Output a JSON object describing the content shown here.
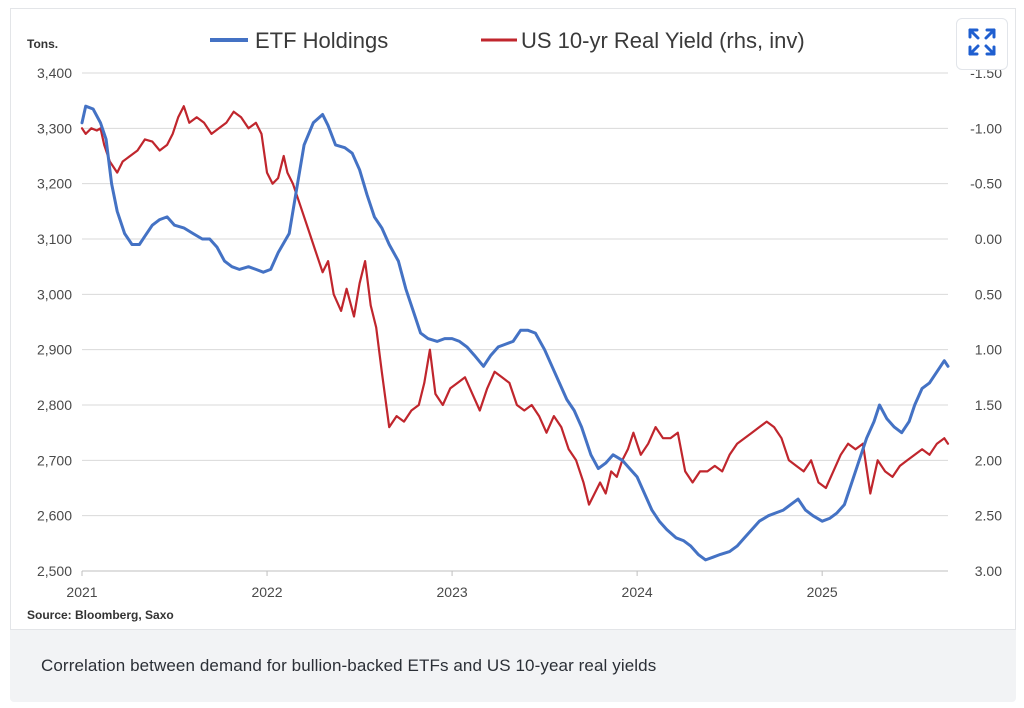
{
  "caption": "Correlation between demand for bullion-backed ETFs and US 10-year real yields",
  "chart_data": {
    "type": "line",
    "units_label": "Tons.",
    "source": "Source: Bloomberg, Saxo",
    "x_ticks": [
      "2021",
      "2022",
      "2023",
      "2024",
      "2025"
    ],
    "x_range": [
      2021.0,
      2025.68
    ],
    "left_axis": {
      "ticks": [
        "3,400",
        "3,300",
        "3,200",
        "3,100",
        "3,000",
        "2,900",
        "2,800",
        "2,700",
        "2,600",
        "2,500"
      ],
      "range": [
        2500,
        3400
      ]
    },
    "right_axis": {
      "inverted": true,
      "ticks": [
        "-1.50",
        "-1.00",
        "-0.50",
        "0.00",
        "0.50",
        "1.00",
        "1.50",
        "2.00",
        "2.50",
        "3.00"
      ],
      "range": [
        -1.5,
        3.0
      ]
    },
    "grid": true,
    "legend_position": "top",
    "series": [
      {
        "name": "ETF Holdings",
        "axis": "left",
        "color": "#4472c4",
        "points": [
          [
            2021.0,
            3310
          ],
          [
            2021.02,
            3340
          ],
          [
            2021.06,
            3335
          ],
          [
            2021.1,
            3310
          ],
          [
            2021.13,
            3280
          ],
          [
            2021.16,
            3200
          ],
          [
            2021.19,
            3150
          ],
          [
            2021.23,
            3110
          ],
          [
            2021.27,
            3090
          ],
          [
            2021.31,
            3090
          ],
          [
            2021.34,
            3105
          ],
          [
            2021.38,
            3125
          ],
          [
            2021.42,
            3135
          ],
          [
            2021.46,
            3140
          ],
          [
            2021.5,
            3125
          ],
          [
            2021.55,
            3120
          ],
          [
            2021.6,
            3110
          ],
          [
            2021.65,
            3100
          ],
          [
            2021.69,
            3100
          ],
          [
            2021.73,
            3085
          ],
          [
            2021.77,
            3060
          ],
          [
            2021.81,
            3050
          ],
          [
            2021.85,
            3045
          ],
          [
            2021.9,
            3050
          ],
          [
            2021.94,
            3045
          ],
          [
            2021.98,
            3040
          ],
          [
            2022.02,
            3045
          ],
          [
            2022.06,
            3075
          ],
          [
            2022.12,
            3110
          ],
          [
            2022.16,
            3190
          ],
          [
            2022.2,
            3270
          ],
          [
            2022.25,
            3310
          ],
          [
            2022.3,
            3325
          ],
          [
            2022.33,
            3305
          ],
          [
            2022.37,
            3270
          ],
          [
            2022.42,
            3265
          ],
          [
            2022.46,
            3255
          ],
          [
            2022.5,
            3225
          ],
          [
            2022.54,
            3180
          ],
          [
            2022.58,
            3140
          ],
          [
            2022.62,
            3120
          ],
          [
            2022.66,
            3090
          ],
          [
            2022.71,
            3060
          ],
          [
            2022.75,
            3010
          ],
          [
            2022.79,
            2970
          ],
          [
            2022.83,
            2930
          ],
          [
            2022.87,
            2920
          ],
          [
            2022.92,
            2915
          ],
          [
            2022.96,
            2920
          ],
          [
            2023.0,
            2920
          ],
          [
            2023.04,
            2915
          ],
          [
            2023.08,
            2905
          ],
          [
            2023.12,
            2890
          ],
          [
            2023.17,
            2870
          ],
          [
            2023.21,
            2890
          ],
          [
            2023.25,
            2905
          ],
          [
            2023.29,
            2910
          ],
          [
            2023.33,
            2915
          ],
          [
            2023.37,
            2935
          ],
          [
            2023.41,
            2935
          ],
          [
            2023.45,
            2930
          ],
          [
            2023.5,
            2900
          ],
          [
            2023.54,
            2870
          ],
          [
            2023.58,
            2840
          ],
          [
            2023.62,
            2810
          ],
          [
            2023.66,
            2790
          ],
          [
            2023.7,
            2760
          ],
          [
            2023.75,
            2710
          ],
          [
            2023.79,
            2685
          ],
          [
            2023.83,
            2695
          ],
          [
            2023.87,
            2710
          ],
          [
            2023.92,
            2700
          ],
          [
            2023.96,
            2685
          ],
          [
            2024.0,
            2670
          ],
          [
            2024.04,
            2640
          ],
          [
            2024.08,
            2610
          ],
          [
            2024.12,
            2590
          ],
          [
            2024.16,
            2575
          ],
          [
            2024.21,
            2560
          ],
          [
            2024.25,
            2555
          ],
          [
            2024.29,
            2545
          ],
          [
            2024.33,
            2530
          ],
          [
            2024.37,
            2520
          ],
          [
            2024.41,
            2525
          ],
          [
            2024.45,
            2530
          ],
          [
            2024.5,
            2535
          ],
          [
            2024.54,
            2545
          ],
          [
            2024.58,
            2560
          ],
          [
            2024.62,
            2575
          ],
          [
            2024.66,
            2590
          ],
          [
            2024.71,
            2600
          ],
          [
            2024.75,
            2605
          ],
          [
            2024.79,
            2610
          ],
          [
            2024.83,
            2620
          ],
          [
            2024.87,
            2630
          ],
          [
            2024.91,
            2610
          ],
          [
            2024.95,
            2600
          ],
          [
            2025.0,
            2590
          ],
          [
            2025.04,
            2595
          ],
          [
            2025.08,
            2605
          ],
          [
            2025.12,
            2620
          ],
          [
            2025.16,
            2660
          ],
          [
            2025.2,
            2700
          ],
          [
            2025.24,
            2740
          ],
          [
            2025.28,
            2770
          ],
          [
            2025.31,
            2800
          ],
          [
            2025.35,
            2775
          ],
          [
            2025.39,
            2760
          ],
          [
            2025.43,
            2750
          ],
          [
            2025.47,
            2770
          ],
          [
            2025.5,
            2800
          ],
          [
            2025.54,
            2830
          ],
          [
            2025.58,
            2840
          ],
          [
            2025.62,
            2860
          ],
          [
            2025.66,
            2880
          ],
          [
            2025.68,
            2870
          ]
        ]
      },
      {
        "name": "US 10-yr Real Yield (rhs, inv)",
        "axis": "right",
        "color": "#c0262d",
        "points": [
          [
            2021.0,
            -1.0
          ],
          [
            2021.02,
            -0.95
          ],
          [
            2021.05,
            -1.0
          ],
          [
            2021.08,
            -0.98
          ],
          [
            2021.1,
            -1.0
          ],
          [
            2021.12,
            -0.85
          ],
          [
            2021.15,
            -0.7
          ],
          [
            2021.19,
            -0.6
          ],
          [
            2021.22,
            -0.7
          ],
          [
            2021.26,
            -0.75
          ],
          [
            2021.3,
            -0.8
          ],
          [
            2021.34,
            -0.9
          ],
          [
            2021.38,
            -0.88
          ],
          [
            2021.42,
            -0.8
          ],
          [
            2021.46,
            -0.85
          ],
          [
            2021.49,
            -0.95
          ],
          [
            2021.52,
            -1.1
          ],
          [
            2021.55,
            -1.2
          ],
          [
            2021.58,
            -1.05
          ],
          [
            2021.62,
            -1.1
          ],
          [
            2021.66,
            -1.05
          ],
          [
            2021.7,
            -0.95
          ],
          [
            2021.74,
            -1.0
          ],
          [
            2021.78,
            -1.05
          ],
          [
            2021.82,
            -1.15
          ],
          [
            2021.86,
            -1.1
          ],
          [
            2021.9,
            -1.0
          ],
          [
            2021.94,
            -1.05
          ],
          [
            2021.97,
            -0.95
          ],
          [
            2022.0,
            -0.6
          ],
          [
            2022.03,
            -0.5
          ],
          [
            2022.06,
            -0.55
          ],
          [
            2022.09,
            -0.75
          ],
          [
            2022.11,
            -0.6
          ],
          [
            2022.14,
            -0.5
          ],
          [
            2022.18,
            -0.3
          ],
          [
            2022.22,
            -0.1
          ],
          [
            2022.26,
            0.1
          ],
          [
            2022.3,
            0.3
          ],
          [
            2022.33,
            0.2
          ],
          [
            2022.36,
            0.5
          ],
          [
            2022.4,
            0.65
          ],
          [
            2022.43,
            0.45
          ],
          [
            2022.47,
            0.7
          ],
          [
            2022.5,
            0.4
          ],
          [
            2022.53,
            0.2
          ],
          [
            2022.56,
            0.6
          ],
          [
            2022.59,
            0.8
          ],
          [
            2022.62,
            1.2
          ],
          [
            2022.66,
            1.7
          ],
          [
            2022.7,
            1.6
          ],
          [
            2022.74,
            1.65
          ],
          [
            2022.78,
            1.55
          ],
          [
            2022.82,
            1.5
          ],
          [
            2022.85,
            1.3
          ],
          [
            2022.88,
            1.0
          ],
          [
            2022.91,
            1.4
          ],
          [
            2022.95,
            1.5
          ],
          [
            2022.99,
            1.35
          ],
          [
            2023.03,
            1.3
          ],
          [
            2023.07,
            1.25
          ],
          [
            2023.11,
            1.4
          ],
          [
            2023.15,
            1.55
          ],
          [
            2023.19,
            1.35
          ],
          [
            2023.23,
            1.2
          ],
          [
            2023.27,
            1.25
          ],
          [
            2023.31,
            1.3
          ],
          [
            2023.35,
            1.5
          ],
          [
            2023.39,
            1.55
          ],
          [
            2023.43,
            1.5
          ],
          [
            2023.47,
            1.6
          ],
          [
            2023.51,
            1.75
          ],
          [
            2023.55,
            1.6
          ],
          [
            2023.59,
            1.7
          ],
          [
            2023.63,
            1.9
          ],
          [
            2023.67,
            2.0
          ],
          [
            2023.71,
            2.2
          ],
          [
            2023.74,
            2.4
          ],
          [
            2023.77,
            2.3
          ],
          [
            2023.8,
            2.2
          ],
          [
            2023.83,
            2.3
          ],
          [
            2023.86,
            2.1
          ],
          [
            2023.89,
            2.15
          ],
          [
            2023.92,
            2.0
          ],
          [
            2023.95,
            1.9
          ],
          [
            2023.98,
            1.75
          ],
          [
            2024.02,
            1.95
          ],
          [
            2024.06,
            1.85
          ],
          [
            2024.1,
            1.7
          ],
          [
            2024.14,
            1.8
          ],
          [
            2024.18,
            1.8
          ],
          [
            2024.22,
            1.75
          ],
          [
            2024.26,
            2.1
          ],
          [
            2024.3,
            2.2
          ],
          [
            2024.34,
            2.1
          ],
          [
            2024.38,
            2.1
          ],
          [
            2024.42,
            2.05
          ],
          [
            2024.46,
            2.1
          ],
          [
            2024.5,
            1.95
          ],
          [
            2024.54,
            1.85
          ],
          [
            2024.58,
            1.8
          ],
          [
            2024.62,
            1.75
          ],
          [
            2024.66,
            1.7
          ],
          [
            2024.7,
            1.65
          ],
          [
            2024.74,
            1.7
          ],
          [
            2024.78,
            1.8
          ],
          [
            2024.82,
            2.0
          ],
          [
            2024.86,
            2.05
          ],
          [
            2024.9,
            2.1
          ],
          [
            2024.94,
            2.0
          ],
          [
            2024.98,
            2.2
          ],
          [
            2025.02,
            2.25
          ],
          [
            2025.06,
            2.1
          ],
          [
            2025.1,
            1.95
          ],
          [
            2025.14,
            1.85
          ],
          [
            2025.18,
            1.9
          ],
          [
            2025.22,
            1.85
          ],
          [
            2025.26,
            2.3
          ],
          [
            2025.3,
            2.0
          ],
          [
            2025.34,
            2.1
          ],
          [
            2025.38,
            2.15
          ],
          [
            2025.42,
            2.05
          ],
          [
            2025.46,
            2.0
          ],
          [
            2025.5,
            1.95
          ],
          [
            2025.54,
            1.9
          ],
          [
            2025.58,
            1.95
          ],
          [
            2025.62,
            1.85
          ],
          [
            2025.66,
            1.8
          ],
          [
            2025.68,
            1.85
          ]
        ]
      }
    ]
  },
  "icons": {
    "expand": "expand-icon"
  }
}
